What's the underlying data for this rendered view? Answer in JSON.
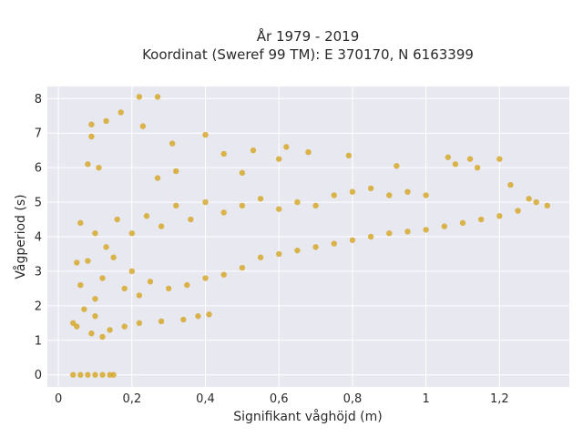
{
  "chart_data": {
    "type": "scatter",
    "title_lines": [
      "År 1979 - 2019",
      "Koordinat (Sweref 99 TM): E 370170, N 6163399"
    ],
    "xlabel": "Signifikant våghöjd (m)",
    "ylabel": "Vågperiod (s)",
    "xlim": [
      -0.03,
      1.39
    ],
    "ylim": [
      -0.35,
      8.35
    ],
    "x_ticks": [
      0,
      0.2,
      0.4,
      0.6,
      0.8,
      1,
      1.2
    ],
    "x_tick_labels": [
      "0",
      "0,2",
      "0,4",
      "0,6",
      "0,8",
      "1",
      "1,2"
    ],
    "y_ticks": [
      0,
      1,
      2,
      3,
      4,
      5,
      6,
      7,
      8
    ],
    "y_tick_labels": [
      "0",
      "1",
      "2",
      "3",
      "4",
      "5",
      "6",
      "7",
      "8"
    ],
    "grid": true,
    "colors": {
      "marker": "#d4a520",
      "plot_bg": "#e8e8f0",
      "grid": "#ffffff"
    },
    "series": [
      {
        "points": [
          [
            0.04,
            0
          ],
          [
            0.06,
            0
          ],
          [
            0.08,
            0
          ],
          [
            0.1,
            0
          ],
          [
            0.12,
            0
          ],
          [
            0.14,
            0
          ],
          [
            0.15,
            0
          ],
          [
            0.04,
            1.5
          ],
          [
            0.05,
            1.4
          ],
          [
            0.07,
            1.9
          ],
          [
            0.09,
            1.2
          ],
          [
            0.1,
            1.7
          ],
          [
            0.12,
            1.1
          ],
          [
            0.14,
            1.3
          ],
          [
            0.18,
            1.4
          ],
          [
            0.22,
            1.5
          ],
          [
            0.28,
            1.55
          ],
          [
            0.34,
            1.6
          ],
          [
            0.38,
            1.7
          ],
          [
            0.41,
            1.75
          ],
          [
            0.06,
            2.6
          ],
          [
            0.08,
            3.3
          ],
          [
            0.1,
            2.2
          ],
          [
            0.12,
            2.8
          ],
          [
            0.15,
            3.4
          ],
          [
            0.18,
            2.5
          ],
          [
            0.2,
            3.0
          ],
          [
            0.22,
            2.3
          ],
          [
            0.25,
            2.7
          ],
          [
            0.3,
            2.5
          ],
          [
            0.35,
            2.6
          ],
          [
            0.4,
            2.8
          ],
          [
            0.45,
            2.9
          ],
          [
            0.5,
            3.1
          ],
          [
            0.1,
            4.1
          ],
          [
            0.13,
            3.7
          ],
          [
            0.16,
            4.5
          ],
          [
            0.2,
            4.1
          ],
          [
            0.24,
            4.6
          ],
          [
            0.28,
            4.3
          ],
          [
            0.32,
            4.9
          ],
          [
            0.36,
            4.5
          ],
          [
            0.4,
            5.0
          ],
          [
            0.45,
            4.7
          ],
          [
            0.5,
            4.9
          ],
          [
            0.55,
            5.1
          ],
          [
            0.6,
            4.8
          ],
          [
            0.65,
            5.0
          ],
          [
            0.7,
            4.9
          ],
          [
            0.75,
            5.2
          ],
          [
            0.8,
            5.3
          ],
          [
            0.85,
            5.4
          ],
          [
            0.9,
            5.2
          ],
          [
            0.95,
            5.3
          ],
          [
            1.0,
            5.2
          ],
          [
            0.55,
            3.4
          ],
          [
            0.6,
            3.5
          ],
          [
            0.65,
            3.6
          ],
          [
            0.7,
            3.7
          ],
          [
            0.75,
            3.8
          ],
          [
            0.8,
            3.9
          ],
          [
            0.85,
            4.0
          ],
          [
            0.9,
            4.1
          ],
          [
            0.95,
            4.15
          ],
          [
            1.0,
            4.2
          ],
          [
            1.05,
            4.3
          ],
          [
            1.1,
            4.4
          ],
          [
            1.15,
            4.5
          ],
          [
            1.2,
            4.6
          ],
          [
            1.25,
            4.75
          ],
          [
            1.3,
            5.0
          ],
          [
            1.33,
            4.9
          ],
          [
            0.22,
            8.05
          ],
          [
            0.27,
            8.05
          ],
          [
            0.17,
            7.6
          ],
          [
            0.09,
            7.25
          ],
          [
            0.13,
            7.35
          ],
          [
            0.23,
            7.2
          ],
          [
            0.09,
            6.9
          ],
          [
            0.4,
            6.95
          ],
          [
            0.31,
            6.7
          ],
          [
            0.53,
            6.5
          ],
          [
            0.45,
            6.4
          ],
          [
            0.6,
            6.25
          ],
          [
            0.62,
            6.6
          ],
          [
            0.68,
            6.45
          ],
          [
            0.79,
            6.35
          ],
          [
            0.92,
            6.05
          ],
          [
            1.06,
            6.3
          ],
          [
            1.08,
            6.1
          ],
          [
            1.12,
            6.25
          ],
          [
            1.14,
            6.0
          ],
          [
            1.2,
            6.25
          ],
          [
            1.23,
            5.5
          ],
          [
            1.28,
            5.1
          ],
          [
            0.08,
            6.1
          ],
          [
            0.11,
            6.0
          ],
          [
            0.05,
            3.25
          ],
          [
            0.06,
            4.4
          ],
          [
            0.32,
            5.9
          ],
          [
            0.5,
            5.85
          ],
          [
            0.27,
            5.7
          ]
        ]
      }
    ]
  }
}
